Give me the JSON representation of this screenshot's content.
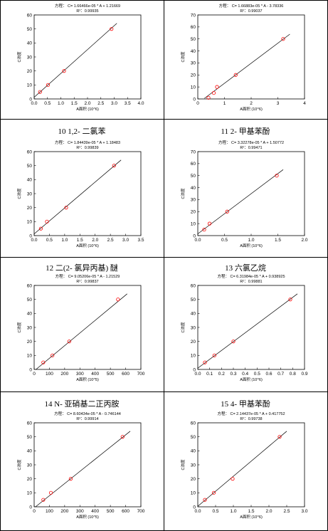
{
  "table": {
    "headings": [
      "",
      "",
      "10   1,2- 二氯苯",
      "11   2- 甲基苯酚",
      "12  二(2- 氯异丙基) 醚",
      "13  六氯乙烷",
      "14  N- 亚硝基二正丙胺",
      "15  4- 甲基苯酚"
    ]
  },
  "chart_data": [
    {
      "type": "scatter",
      "title": "方程： C= 1.66466e-05 * A + 1.21669",
      "subtitle": "R²：0.99935",
      "xlabel": "A面积 (10^6)",
      "ylabel": "C浓度",
      "xlim": [
        0,
        4
      ],
      "ylim": [
        0,
        60
      ],
      "xticks": [
        "0.0",
        "0.5",
        "1.0",
        "1.5",
        "2.0",
        "2.5",
        "3.0",
        "3.5",
        "4.0"
      ],
      "yticks": [
        "0",
        "10",
        "20",
        "30",
        "40",
        "50",
        "60"
      ],
      "points": [
        [
          0.22,
          5
        ],
        [
          0.52,
          10
        ],
        [
          1.12,
          20
        ],
        [
          2.9,
          50
        ]
      ],
      "fit": [
        [
          0,
          1.2
        ],
        [
          3.1,
          54
        ]
      ],
      "color": "#ff0000"
    },
    {
      "type": "scatter",
      "title": "方程： C= 1.66883e-05 * A - 3.78336",
      "subtitle": "R²：0.99037",
      "xlabel": "A面积 (10^6)",
      "ylabel": "C浓度",
      "xlim": [
        0,
        4
      ],
      "ylim": [
        0,
        70
      ],
      "xticks": [
        "0",
        "1",
        "2",
        "3",
        "4"
      ],
      "yticks": [
        "0",
        "10",
        "20",
        "30",
        "40",
        "50",
        "60",
        "70"
      ],
      "points": [
        [
          0.4,
          1
        ],
        [
          0.6,
          5
        ],
        [
          0.72,
          10
        ],
        [
          1.42,
          20
        ],
        [
          3.2,
          50
        ]
      ],
      "fit": [
        [
          0.25,
          0.5
        ],
        [
          3.45,
          54
        ]
      ],
      "color": "#ff0000"
    },
    {
      "type": "scatter",
      "title": "方程： C= 1.84439e-05 * A + 1.18483",
      "subtitle": "R²：0.99839",
      "xlabel": "A面积 (10^6)",
      "ylabel": "C浓度",
      "xlim": [
        0,
        3.5
      ],
      "ylim": [
        0,
        60
      ],
      "xticks": [
        "0.0",
        "0.5",
        "1.0",
        "1.5",
        "2.0",
        "2.5",
        "3.0",
        "3.5"
      ],
      "yticks": [
        "0",
        "10",
        "20",
        "30",
        "40",
        "50",
        "60"
      ],
      "points": [
        [
          0.22,
          5
        ],
        [
          0.42,
          10
        ],
        [
          1.05,
          20
        ],
        [
          2.62,
          50
        ]
      ],
      "fit": [
        [
          0,
          1.2
        ],
        [
          2.85,
          54
        ]
      ],
      "color": "#ff0000"
    },
    {
      "type": "scatter",
      "title": "方程： C= 3.32278e-05 * A + 1.50772",
      "subtitle": "R²：0.99471",
      "xlabel": "A面积 (10^6)",
      "ylabel": "C浓度",
      "xlim": [
        0,
        2
      ],
      "ylim": [
        0,
        70
      ],
      "xticks": [
        "0.0",
        "0.5",
        "1.0",
        "1.5",
        "2.0"
      ],
      "yticks": [
        "0",
        "10",
        "20",
        "30",
        "40",
        "50",
        "60",
        "70"
      ],
      "points": [
        [
          0.12,
          5
        ],
        [
          0.22,
          10
        ],
        [
          0.55,
          20
        ],
        [
          1.48,
          50
        ]
      ],
      "fit": [
        [
          0,
          1.5
        ],
        [
          1.6,
          55
        ]
      ],
      "color": "#ff0000"
    },
    {
      "type": "scatter",
      "title": "方程： C= 9.05206e-05 * A - 1.21529",
      "subtitle": "R²：0.99837",
      "xlabel": "A面积 (10^5)",
      "ylabel": "C浓度",
      "xlim": [
        0,
        700
      ],
      "ylim": [
        0,
        60
      ],
      "xticks": [
        "0",
        "100",
        "200",
        "300",
        "400",
        "500",
        "600",
        "700"
      ],
      "yticks": [
        "0",
        "10",
        "20",
        "30",
        "40",
        "50",
        "60"
      ],
      "points": [
        [
          60,
          5
        ],
        [
          120,
          10
        ],
        [
          230,
          20
        ],
        [
          550,
          50
        ]
      ],
      "fit": [
        [
          12,
          0
        ],
        [
          610,
          54
        ]
      ],
      "color": "#ff0000"
    },
    {
      "type": "scatter",
      "title": "方程： C= 6.31984e-05 * A + 0.938925",
      "subtitle": "R²：0.99881",
      "xlabel": "A面积 (10^6)",
      "ylabel": "C浓度",
      "xlim": [
        0,
        0.9
      ],
      "ylim": [
        0,
        60
      ],
      "xticks": [
        "0.0",
        "0.1",
        "0.2",
        "0.3",
        "0.4",
        "0.5",
        "0.6",
        "0.7",
        "0.8",
        "0.9"
      ],
      "yticks": [
        "0",
        "10",
        "20",
        "30",
        "40",
        "50",
        "60"
      ],
      "points": [
        [
          0.06,
          5
        ],
        [
          0.14,
          10
        ],
        [
          0.3,
          20
        ],
        [
          0.78,
          50
        ]
      ],
      "fit": [
        [
          0,
          0.9
        ],
        [
          0.84,
          54
        ]
      ],
      "color": "#ff0000"
    },
    {
      "type": "scatter",
      "title": "方程： C= 8.60434e-05 * A - 0.746144",
      "subtitle": "R²：0.99914",
      "xlabel": "A面积 (10^5)",
      "ylabel": "C浓度",
      "xlim": [
        0,
        700
      ],
      "ylim": [
        0,
        60
      ],
      "xticks": [
        "0",
        "100",
        "200",
        "300",
        "400",
        "500",
        "600",
        "700"
      ],
      "yticks": [
        "0",
        "10",
        "20",
        "30",
        "40",
        "50",
        "60"
      ],
      "points": [
        [
          60,
          5
        ],
        [
          110,
          10
        ],
        [
          240,
          20
        ],
        [
          580,
          50
        ]
      ],
      "fit": [
        [
          9,
          0
        ],
        [
          630,
          54
        ]
      ],
      "color": "#ff0000"
    },
    {
      "type": "scatter",
      "title": "方程： C= 2.14437e-05 * A + 0.417752",
      "subtitle": "R²：0.99738",
      "xlabel": "A面积 (10^6)",
      "ylabel": "C浓度",
      "xlim": [
        0,
        3
      ],
      "ylim": [
        0,
        60
      ],
      "xticks": [
        "0.0",
        "0.5",
        "1.0",
        "1.5",
        "2.0",
        "2.5",
        "3.0"
      ],
      "yticks": [
        "0",
        "10",
        "20",
        "30",
        "40",
        "50",
        "60"
      ],
      "points": [
        [
          0.2,
          5
        ],
        [
          0.45,
          10
        ],
        [
          0.98,
          20
        ],
        [
          2.3,
          50
        ]
      ],
      "fit": [
        [
          0,
          0.4
        ],
        [
          2.5,
          54
        ]
      ],
      "color": "#ff0000"
    }
  ]
}
